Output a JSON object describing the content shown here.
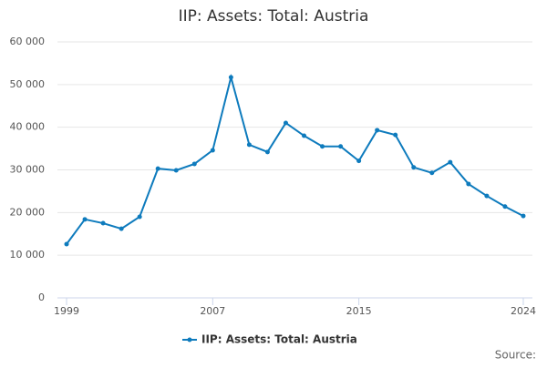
{
  "chart_data": {
    "type": "line",
    "title": "IIP: Assets: Total: Austria",
    "x": [
      1999,
      2000,
      2001,
      2002,
      2003,
      2004,
      2005,
      2006,
      2007,
      2008,
      2009,
      2010,
      2011,
      2012,
      2013,
      2014,
      2015,
      2016,
      2017,
      2018,
      2019,
      2020,
      2021,
      2022,
      2023,
      2024
    ],
    "series": [
      {
        "name": "IIP: Assets: Total: Austria",
        "color": "#0e7bbd",
        "values": [
          12600,
          18400,
          17500,
          16200,
          19000,
          30300,
          29900,
          31400,
          34600,
          51700,
          35900,
          34200,
          41000,
          38000,
          35500,
          35500,
          32100,
          39300,
          38200,
          30600,
          29300,
          31800,
          26700,
          23900,
          21400,
          19200
        ]
      }
    ],
    "xlim": [
      1998.5,
      2024.5
    ],
    "xticks": [
      1999,
      2007,
      2015,
      2024
    ],
    "ylim": [
      0,
      60000
    ],
    "yticks": [
      0,
      {
        "value": 10000,
        "label": "10 000"
      },
      {
        "value": 20000,
        "label": "20 000"
      },
      {
        "value": 30000,
        "label": "30 000"
      },
      {
        "value": 40000,
        "label": "40 000"
      },
      {
        "value": 50000,
        "label": "50 000"
      },
      {
        "value": 60000,
        "label": "60 000"
      }
    ],
    "grid": true,
    "source": "Source:"
  }
}
